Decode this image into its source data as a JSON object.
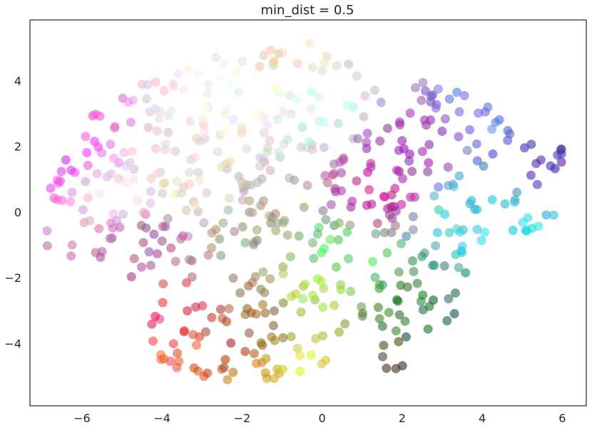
{
  "chart_data": {
    "type": "scatter",
    "title": "min_dist = 0.5",
    "xlabel": "",
    "ylabel": "",
    "xlim": [
      -7.3,
      6.6
    ],
    "ylim": [
      -5.9,
      5.85
    ],
    "xticks": [
      -6,
      -4,
      -2,
      0,
      2,
      4,
      6
    ],
    "yticks": [
      -4,
      -2,
      0,
      2,
      4
    ],
    "xtick_labels": [
      "−6",
      "−4",
      "−2",
      "0",
      "2",
      "4",
      "6"
    ],
    "ytick_labels": [
      "−4",
      "−2",
      "0",
      "2",
      "4"
    ],
    "grid": false,
    "point_count": 600,
    "point_opacity": 0.6,
    "color_encoding": "each point colored by its own RGB value",
    "region_colors": {
      "left_top": "#e040e0",
      "top_center": "#f6f2e8",
      "right_top": "#4a5ad8",
      "right_middle": "#30d0d8",
      "center_lower": "#60e060",
      "bottom_left": "#e03040",
      "bottom_center": "#c0d020",
      "bottom_right": "#206030"
    }
  }
}
